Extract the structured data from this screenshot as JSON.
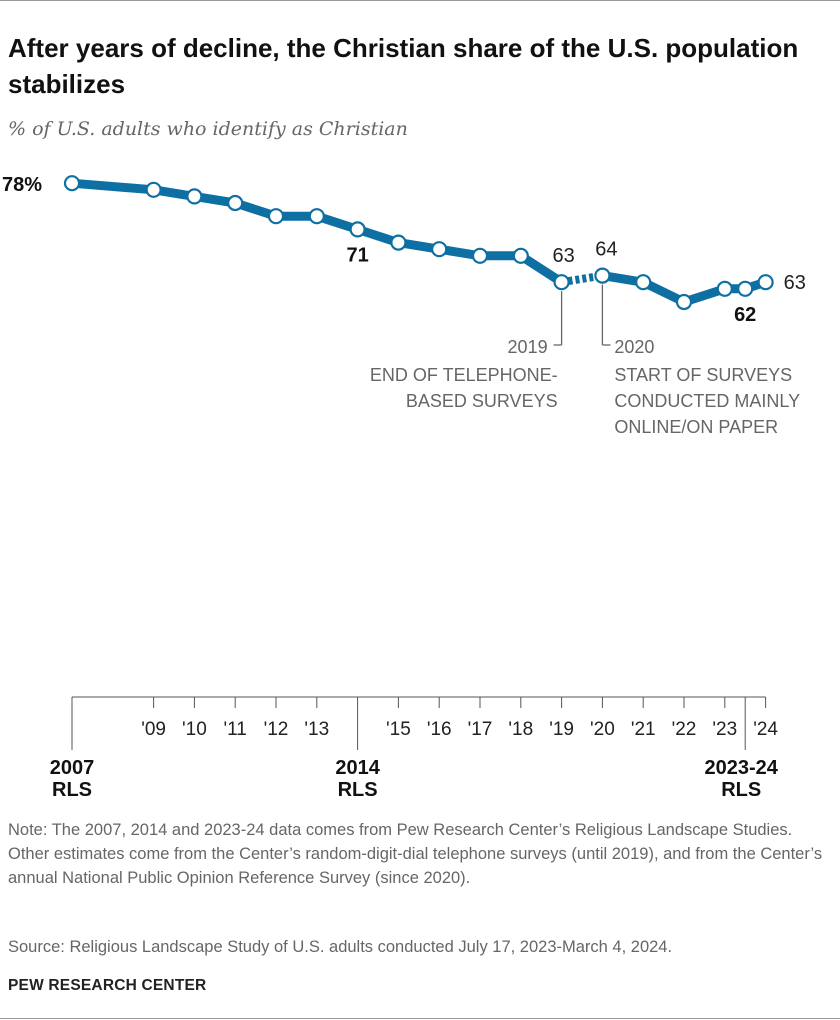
{
  "header": {
    "title": "After years of decline, the Christian share of the U.S. population stabilizes",
    "subtitle": "% of U.S. adults who identify as Christian"
  },
  "footer": {
    "note": "Note: The 2007, 2014 and 2023-24 data comes from Pew Research Center’s Religious Landscape Studies. Other estimates come from the Center’s random-digit-dial telephone surveys (until 2019), and from the Center’s annual National Public Opinion Reference Survey (since 2020).",
    "source": "Source: Religious Landscape Study of U.S. adults conducted July 17, 2023-March 4, 2024.",
    "brand": "PEW RESEARCH CENTER"
  },
  "chart_data": {
    "type": "line",
    "title": "After years of decline, the Christian share of the U.S. population stabilizes",
    "subtitle": "% of U.S. adults who identify as Christian",
    "color": "#0e6fa3",
    "ylim": [
      0,
      78
    ],
    "grid": false,
    "points": [
      {
        "x": "2007 RLS",
        "year": 2007,
        "value": 78,
        "label": "78%",
        "bold": true
      },
      {
        "x": "'09",
        "year": 2009,
        "value": 77
      },
      {
        "x": "'10",
        "year": 2010,
        "value": 76
      },
      {
        "x": "'11",
        "year": 2011,
        "value": 75
      },
      {
        "x": "'12",
        "year": 2012,
        "value": 73
      },
      {
        "x": "'13",
        "year": 2013,
        "value": 73
      },
      {
        "x": "2014 RLS",
        "year": 2014,
        "value": 71,
        "label": "71",
        "bold": true
      },
      {
        "x": "'15",
        "year": 2015,
        "value": 69
      },
      {
        "x": "'16",
        "year": 2016,
        "value": 68
      },
      {
        "x": "'17",
        "year": 2017,
        "value": 67
      },
      {
        "x": "'18",
        "year": 2018,
        "value": 67
      },
      {
        "x": "'19",
        "year": 2019,
        "value": 63,
        "label": "63"
      },
      {
        "x": "'20",
        "year": 2020,
        "value": 64,
        "label": "64"
      },
      {
        "x": "'21",
        "year": 2021,
        "value": 63
      },
      {
        "x": "'22",
        "year": 2022,
        "value": 60
      },
      {
        "x": "'23",
        "year": 2023,
        "value": 62
      },
      {
        "x": "2023-24 RLS",
        "year": 2023.5,
        "value": 62,
        "label": "62",
        "bold": true
      },
      {
        "x": "'24",
        "year": 2024,
        "value": 63,
        "label": "63"
      }
    ],
    "break_between": [
      "2019",
      "2020"
    ],
    "minor_ticks": [
      {
        "year": 2009,
        "label": "'09"
      },
      {
        "year": 2010,
        "label": "'10"
      },
      {
        "year": 2011,
        "label": "'11"
      },
      {
        "year": 2012,
        "label": "'12"
      },
      {
        "year": 2013,
        "label": "'13"
      },
      {
        "year": 2015,
        "label": "'15"
      },
      {
        "year": 2016,
        "label": "'16"
      },
      {
        "year": 2017,
        "label": "'17"
      },
      {
        "year": 2018,
        "label": "'18"
      },
      {
        "year": 2019,
        "label": "'19"
      },
      {
        "year": 2020,
        "label": "'20"
      },
      {
        "year": 2021,
        "label": "'21"
      },
      {
        "year": 2022,
        "label": "'22"
      },
      {
        "year": 2023,
        "label": "'23"
      },
      {
        "year": 2024,
        "label": "'24"
      }
    ],
    "major_ticks": [
      {
        "year": 2007,
        "line1": "2007",
        "line2": "RLS"
      },
      {
        "year": 2014,
        "line1": "2014",
        "line2": "RLS"
      },
      {
        "year": 2023.5,
        "line1": "2023-24",
        "line2": "RLS"
      }
    ],
    "annotations": [
      {
        "year": 2019,
        "side": "left",
        "head": "2019",
        "lines": [
          "END OF TELEPHONE-",
          "BASED SURVEYS"
        ]
      },
      {
        "year": 2020,
        "side": "right",
        "head": "2020",
        "lines": [
          "START OF SURVEYS",
          "CONDUCTED MAINLY",
          "ONLINE/ON PAPER"
        ]
      }
    ]
  }
}
